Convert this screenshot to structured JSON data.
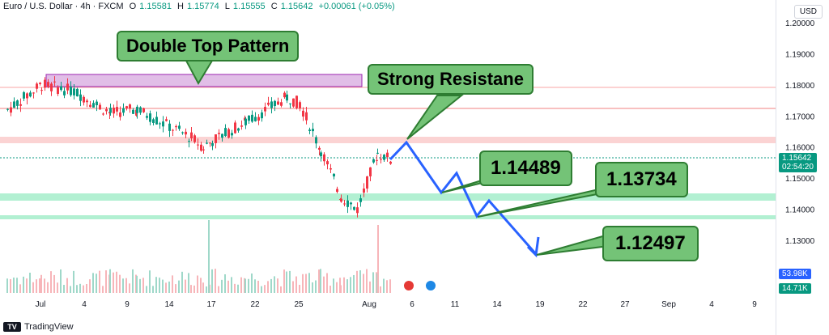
{
  "header": {
    "title": "Euro / U.S. Dollar · 4h · FXCM",
    "o_label": "O",
    "o_value": "1.15581",
    "h_label": "H",
    "h_value": "1.15774",
    "l_label": "L",
    "l_value": "1.15555",
    "c_label": "C",
    "c_value": "1.15642",
    "change": "+0.00061 (+0.05%)"
  },
  "currency_button": "USD",
  "price_axis": [
    "1.20000",
    "1.19000",
    "1.18000",
    "1.17000",
    "1.16000",
    "1.15000",
    "1.14000",
    "1.13000"
  ],
  "current_price": "1.15642",
  "countdown": "02:54:20",
  "volume_labels": [
    "53.98K",
    "14.71K"
  ],
  "time_axis": [
    "Jul",
    "4",
    "9",
    "14",
    "17",
    "22",
    "25",
    "Aug",
    "6",
    "11",
    "14",
    "19",
    "22",
    "27",
    "Sep",
    "4",
    "9"
  ],
  "callouts": {
    "double_top": "Double Top Pattern",
    "resistance": "Strong Resistane",
    "target1": "1.14489",
    "target2": "1.13734",
    "target3": "1.12497"
  },
  "footer": {
    "brand": "TradingView",
    "logo": "TV"
  },
  "colors": {
    "up": "#089981",
    "down": "#f23645",
    "projection": "#2962ff",
    "callout_fill": "#74c377",
    "support_zone": "#b2f0d2",
    "resistance_zone": "#fbd3d3",
    "double_top_zone": "#e1bee7"
  },
  "chart_data": {
    "type": "candlestick",
    "symbol": "EURUSD",
    "timeframe": "4h",
    "ylim": [
      1.12,
      1.205
    ],
    "ohlc_path": [
      {
        "date": "Jun 29",
        "price": 1.172
      },
      {
        "date": "Jul 1",
        "price": 1.18
      },
      {
        "date": "Jul 3",
        "price": 1.178
      },
      {
        "date": "Jul 7",
        "price": 1.171
      },
      {
        "date": "Jul 10",
        "price": 1.172
      },
      {
        "date": "Jul 15",
        "price": 1.163
      },
      {
        "date": "Jul 16",
        "price": 1.16
      },
      {
        "date": "Jul 17",
        "price": 1.162
      },
      {
        "date": "Jul 21",
        "price": 1.168
      },
      {
        "date": "Jul 24",
        "price": 1.176
      },
      {
        "date": "Jul 25",
        "price": 1.174
      },
      {
        "date": "Jul 28",
        "price": 1.159
      },
      {
        "date": "Jul 30",
        "price": 1.144
      },
      {
        "date": "Aug 1",
        "price": 1.14
      },
      {
        "date": "Aug 2",
        "price": 1.158
      },
      {
        "date": "Aug 4",
        "price": 1.156
      }
    ],
    "projection": [
      {
        "date": "Aug 4",
        "price": 1.1565
      },
      {
        "date": "Aug 6",
        "price": 1.162
      },
      {
        "date": "Aug 9",
        "price": 1.1449
      },
      {
        "date": "Aug 11",
        "price": 1.151
      },
      {
        "date": "Aug 13",
        "price": 1.1373
      },
      {
        "date": "Aug 15",
        "price": 1.142
      },
      {
        "date": "Aug 19",
        "price": 1.125
      }
    ],
    "zones": [
      {
        "name": "double_top",
        "low": 1.1795,
        "high": 1.1835
      },
      {
        "name": "resistance",
        "low": 1.1605,
        "high": 1.1625
      },
      {
        "name": "support_1",
        "low": 1.1429,
        "high": 1.1439
      },
      {
        "name": "support_2",
        "low": 1.1362,
        "high": 1.1369
      }
    ],
    "levels": [
      1.1785,
      1.172
    ]
  }
}
